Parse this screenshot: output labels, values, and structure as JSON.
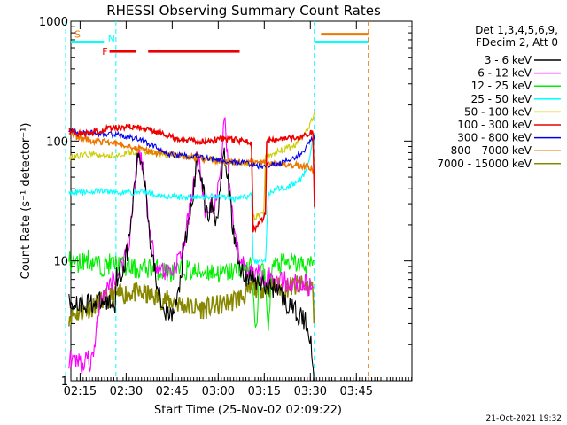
{
  "colors": {
    "3-6": "#000000",
    "6-12": "#ff00ff",
    "12-25": "#00ee00",
    "25-50": "#00ffff",
    "50-100": "#cccc00",
    "100-300": "#ee0000",
    "300-800": "#0000ee",
    "800-7000": "#ee7700",
    "7000-15000": "#888800",
    "axis": "#000000",
    "bg": "#ffffff"
  },
  "chart_data": {
    "type": "line",
    "title": "RHESSI Observing Summary Count Rates",
    "xlabel": "Start Time (25-Nov-02 02:09:22)",
    "ylabel": "Count Rate (s⁻¹ detector⁻¹)",
    "yscale": "log",
    "ylim": [
      1,
      1000
    ],
    "xlim_minutes": [
      2.63,
      113.73
    ],
    "xticks": [
      {
        "label": "02:15",
        "min": 5.63
      },
      {
        "label": "02:30",
        "min": 20.63
      },
      {
        "label": "02:45",
        "min": 35.63
      },
      {
        "label": "03:00",
        "min": 50.63
      },
      {
        "label": "03:15",
        "min": 65.63
      },
      {
        "label": "03:30",
        "min": 80.63
      },
      {
        "label": "03:45",
        "min": 95.63
      }
    ],
    "yticks": [
      {
        "label": "1",
        "value": 1
      },
      {
        "label": "10",
        "value": 10
      },
      {
        "label": "100",
        "value": 100
      },
      {
        "label": "1000",
        "value": 1000
      }
    ],
    "legend_header": [
      "Det 1,3,4,5,6,9,",
      "FDecim 2, Att 0"
    ],
    "timestamp": "21-Oct-2021 19:32",
    "flags": [
      {
        "letter": "S",
        "start": 0,
        "end": 13.4,
        "value": 670,
        "color_key": "800-7000",
        "line_color_key": "25-50"
      },
      {
        "letter": "N",
        "start": 13.5,
        "end": 13.5,
        "value": 670,
        "color_key": "25-50",
        "line_color_key": "25-50"
      },
      {
        "letter": "F",
        "start": 15.2,
        "end": 19.8,
        "value": 560,
        "color_key": "100-300",
        "line_color_key": "100-300"
      },
      {
        "letter": "",
        "start": 19.8,
        "end": 23.8,
        "value": 560,
        "color_key": "100-300",
        "line_color_key": "100-300"
      },
      {
        "letter": "",
        "start": 27.8,
        "end": 57.6,
        "value": 560,
        "color_key": "100-300",
        "line_color_key": "100-300"
      },
      {
        "letter": "",
        "start": 81.9,
        "end": 99.5,
        "value": 670,
        "color_key": "25-50",
        "line_color_key": "25-50"
      },
      {
        "letter": "",
        "start": 84.1,
        "end": 99.5,
        "value": 780,
        "color_key": "800-7000",
        "line_color_key": "800-7000"
      }
    ],
    "vlines": [
      {
        "min": 0.9,
        "color_key": "25-50"
      },
      {
        "min": 17.3,
        "color_key": "25-50"
      },
      {
        "min": 81.9,
        "color_key": "25-50"
      },
      {
        "min": 99.5,
        "color_key": "800-7000"
      }
    ],
    "series": [
      {
        "name": "3 - 6 keV",
        "key": "3-6",
        "points": [
          [
            2.0,
            4.5
          ],
          [
            17.0,
            4.5
          ],
          [
            17.5,
            7.5
          ],
          [
            19.5,
            8
          ],
          [
            21.5,
            14
          ],
          [
            23.5,
            45
          ],
          [
            24.5,
            75
          ],
          [
            25.5,
            70
          ],
          [
            26.8,
            45
          ],
          [
            28.5,
            15
          ],
          [
            30.0,
            8
          ],
          [
            32.0,
            5
          ],
          [
            34.0,
            3.5
          ],
          [
            35.8,
            3.5
          ],
          [
            37.5,
            5
          ],
          [
            39.5,
            12
          ],
          [
            41.5,
            25
          ],
          [
            43.0,
            45
          ],
          [
            43.6,
            70
          ],
          [
            44.4,
            65
          ],
          [
            45.6,
            40
          ],
          [
            46.5,
            28
          ],
          [
            47.5,
            24
          ],
          [
            48.5,
            30
          ],
          [
            49.2,
            27
          ],
          [
            50.0,
            22
          ],
          [
            51.0,
            35
          ],
          [
            52.6,
            75
          ],
          [
            53.6,
            50
          ],
          [
            54.6,
            30
          ],
          [
            55.6,
            17
          ],
          [
            57.0,
            10
          ],
          [
            59.0,
            7.5
          ],
          [
            62.0,
            7
          ],
          [
            66.0,
            6
          ],
          [
            70.0,
            6
          ],
          [
            72.5,
            4.5
          ],
          [
            74.5,
            4
          ],
          [
            77.0,
            3.5
          ],
          [
            79.5,
            3
          ],
          [
            80.8,
            2.2
          ],
          [
            81.3,
            1.2
          ],
          [
            81.8,
            1
          ]
        ]
      },
      {
        "name": "6 - 12 keV",
        "key": "6-12",
        "points": [
          [
            2.0,
            1.3
          ],
          [
            3.2,
            1.8
          ],
          [
            3.8,
            1.3
          ],
          [
            5.0,
            1.6
          ],
          [
            6.5,
            1.3
          ],
          [
            8.0,
            1.8
          ],
          [
            9.0,
            1.3
          ],
          [
            10.5,
            2.2
          ],
          [
            12.5,
            5
          ],
          [
            14.5,
            5.5
          ],
          [
            16.0,
            7
          ],
          [
            18.0,
            8
          ],
          [
            19.5,
            10
          ],
          [
            21.5,
            14
          ],
          [
            23.5,
            45
          ],
          [
            24.5,
            80
          ],
          [
            25.5,
            75
          ],
          [
            26.8,
            45
          ],
          [
            28.5,
            16
          ],
          [
            30.0,
            10
          ],
          [
            32.0,
            8.5
          ],
          [
            34.0,
            8
          ],
          [
            35.8,
            8.5
          ],
          [
            37.5,
            10
          ],
          [
            39.5,
            14
          ],
          [
            41.5,
            28
          ],
          [
            43.0,
            50
          ],
          [
            43.6,
            80
          ],
          [
            44.4,
            65
          ],
          [
            45.6,
            38
          ],
          [
            46.5,
            26
          ],
          [
            47.5,
            22
          ],
          [
            48.5,
            28
          ],
          [
            49.2,
            30
          ],
          [
            50.0,
            30
          ],
          [
            51.0,
            45
          ],
          [
            52.6,
            165
          ],
          [
            53.6,
            75
          ],
          [
            54.6,
            32
          ],
          [
            55.6,
            18
          ],
          [
            57.0,
            12
          ],
          [
            59.0,
            9
          ],
          [
            62.0,
            8
          ],
          [
            66.0,
            7.5
          ],
          [
            70.0,
            7
          ],
          [
            74.0,
            6.5
          ],
          [
            78.0,
            6.5
          ],
          [
            81.0,
            6
          ],
          [
            81.6,
            6
          ]
        ]
      },
      {
        "name": "12 - 25 keV",
        "key": "12-25",
        "points": [
          [
            2.0,
            10
          ],
          [
            5.0,
            9.5
          ],
          [
            8.0,
            10.5
          ],
          [
            12.0,
            9
          ],
          [
            16.0,
            9.5
          ],
          [
            20.0,
            9
          ],
          [
            24.0,
            8.5
          ],
          [
            28.0,
            8.8
          ],
          [
            32.0,
            8.3
          ],
          [
            36.0,
            7.8
          ],
          [
            40.0,
            8.5
          ],
          [
            44.0,
            8
          ],
          [
            48.0,
            8.2
          ],
          [
            52.0,
            7.8
          ],
          [
            56.0,
            8.3
          ],
          [
            60.0,
            9
          ],
          [
            61.5,
            8.5
          ],
          [
            62.5,
            3
          ],
          [
            63.3,
            3.5
          ],
          [
            64.0,
            7
          ],
          [
            64.5,
            9
          ],
          [
            66.0,
            7
          ],
          [
            66.5,
            3.5
          ],
          [
            67.2,
            3
          ],
          [
            68.0,
            9
          ],
          [
            72.0,
            9.5
          ],
          [
            76.0,
            9.5
          ],
          [
            80.0,
            9
          ],
          [
            81.8,
            10
          ]
        ]
      },
      {
        "name": "25 - 50 keV",
        "key": "25-50",
        "points": [
          [
            2.0,
            38
          ],
          [
            6.0,
            37
          ],
          [
            10.0,
            38
          ],
          [
            14.0,
            38
          ],
          [
            20.0,
            37
          ],
          [
            26.0,
            38
          ],
          [
            32.0,
            35
          ],
          [
            38.0,
            34
          ],
          [
            44.0,
            34
          ],
          [
            50.0,
            35
          ],
          [
            56.0,
            33
          ],
          [
            61.5,
            35
          ],
          [
            62.0,
            10
          ],
          [
            66.0,
            10
          ],
          [
            67.0,
            37
          ],
          [
            70.0,
            40
          ],
          [
            74.0,
            42
          ],
          [
            77.0,
            47
          ],
          [
            79.0,
            55
          ],
          [
            80.5,
            70
          ],
          [
            81.3,
            100
          ],
          [
            81.8,
            95
          ]
        ]
      },
      {
        "name": "50 - 100 keV",
        "key": "50-100",
        "points": [
          [
            2.0,
            72
          ],
          [
            6.0,
            76
          ],
          [
            10.0,
            78
          ],
          [
            14.0,
            74
          ],
          [
            18.0,
            77
          ],
          [
            22.0,
            80
          ],
          [
            26.0,
            82
          ],
          [
            30.0,
            80
          ],
          [
            34.0,
            76
          ],
          [
            40.0,
            74
          ],
          [
            46.0,
            72
          ],
          [
            50.0,
            70
          ],
          [
            56.0,
            66
          ],
          [
            61.5,
            64
          ],
          [
            62.0,
            23
          ],
          [
            64.5,
            24
          ],
          [
            65.5,
            26
          ],
          [
            66.0,
            75
          ],
          [
            69.0,
            80
          ],
          [
            72.0,
            85
          ],
          [
            75.0,
            90
          ],
          [
            78.0,
            105
          ],
          [
            80.0,
            130
          ],
          [
            81.5,
            160
          ],
          [
            82.2,
            185
          ]
        ]
      },
      {
        "name": "100 - 300 keV",
        "key": "100-300",
        "points": [
          [
            2.0,
            120
          ],
          [
            6.0,
            115
          ],
          [
            10.0,
            118
          ],
          [
            14.0,
            125
          ],
          [
            18.0,
            130
          ],
          [
            22.0,
            132
          ],
          [
            26.0,
            128
          ],
          [
            30.0,
            120
          ],
          [
            34.0,
            110
          ],
          [
            40.0,
            102
          ],
          [
            46.0,
            100
          ],
          [
            50.0,
            103
          ],
          [
            54.0,
            105
          ],
          [
            58.0,
            100
          ],
          [
            61.0,
            97
          ],
          [
            61.5,
            92
          ],
          [
            62.0,
            18
          ],
          [
            64.0,
            21
          ],
          [
            66.0,
            24
          ],
          [
            66.4,
            100
          ],
          [
            70.0,
            102
          ],
          [
            74.0,
            105
          ],
          [
            78.0,
            110
          ],
          [
            80.0,
            115
          ],
          [
            81.5,
            120
          ],
          [
            82.0,
            28
          ]
        ]
      },
      {
        "name": "300 - 800 keV",
        "key": "300-800",
        "points": [
          [
            2.0,
            125
          ],
          [
            6.0,
            115
          ],
          [
            10.0,
            118
          ],
          [
            14.0,
            113
          ],
          [
            18.0,
            112
          ],
          [
            22.0,
            108
          ],
          [
            26.0,
            100
          ],
          [
            30.0,
            90
          ],
          [
            34.0,
            78
          ],
          [
            38.0,
            76
          ],
          [
            42.0,
            75
          ],
          [
            46.0,
            73
          ],
          [
            50.0,
            70
          ],
          [
            54.0,
            68
          ],
          [
            58.0,
            66
          ],
          [
            61.5,
            64
          ],
          [
            64.0,
            62
          ],
          [
            66.0,
            62
          ],
          [
            70.0,
            64
          ],
          [
            74.0,
            70
          ],
          [
            78.0,
            80
          ],
          [
            80.0,
            95
          ],
          [
            81.5,
            105
          ],
          [
            82.0,
            112
          ]
        ]
      },
      {
        "name": "800 - 7000 keV",
        "key": "800-7000",
        "points": [
          [
            2.0,
            118
          ],
          [
            6.0,
            105
          ],
          [
            10.0,
            100
          ],
          [
            14.0,
            98
          ],
          [
            18.0,
            95
          ],
          [
            22.0,
            90
          ],
          [
            26.0,
            85
          ],
          [
            30.0,
            80
          ],
          [
            34.0,
            78
          ],
          [
            38.0,
            76
          ],
          [
            42.0,
            73
          ],
          [
            46.0,
            71
          ],
          [
            50.0,
            69
          ],
          [
            54.0,
            68
          ],
          [
            58.0,
            67
          ],
          [
            62.0,
            66
          ],
          [
            66.0,
            66
          ],
          [
            70.0,
            65
          ],
          [
            74.0,
            63
          ],
          [
            78.0,
            62
          ],
          [
            80.0,
            60
          ],
          [
            81.2,
            58
          ],
          [
            81.8,
            55
          ]
        ]
      },
      {
        "name": "7000 - 15000 keV",
        "key": "7000-15000",
        "points": [
          [
            2.0,
            3.5
          ],
          [
            6.0,
            3.8
          ],
          [
            10.0,
            4.2
          ],
          [
            14.0,
            4.8
          ],
          [
            18.0,
            5.2
          ],
          [
            22.0,
            5.5
          ],
          [
            26.0,
            5.3
          ],
          [
            30.0,
            5
          ],
          [
            34.0,
            4.7
          ],
          [
            38.0,
            4.4
          ],
          [
            42.0,
            4.1
          ],
          [
            46.0,
            4
          ],
          [
            50.0,
            4.2
          ],
          [
            54.0,
            4.5
          ],
          [
            58.0,
            5
          ],
          [
            60.0,
            5.3
          ],
          [
            62.0,
            6
          ],
          [
            66.0,
            6
          ],
          [
            70.0,
            6
          ],
          [
            74.0,
            6.1
          ],
          [
            78.0,
            6.2
          ],
          [
            81.0,
            6
          ],
          [
            81.5,
            5.8
          ],
          [
            81.8,
            3
          ]
        ]
      }
    ]
  }
}
